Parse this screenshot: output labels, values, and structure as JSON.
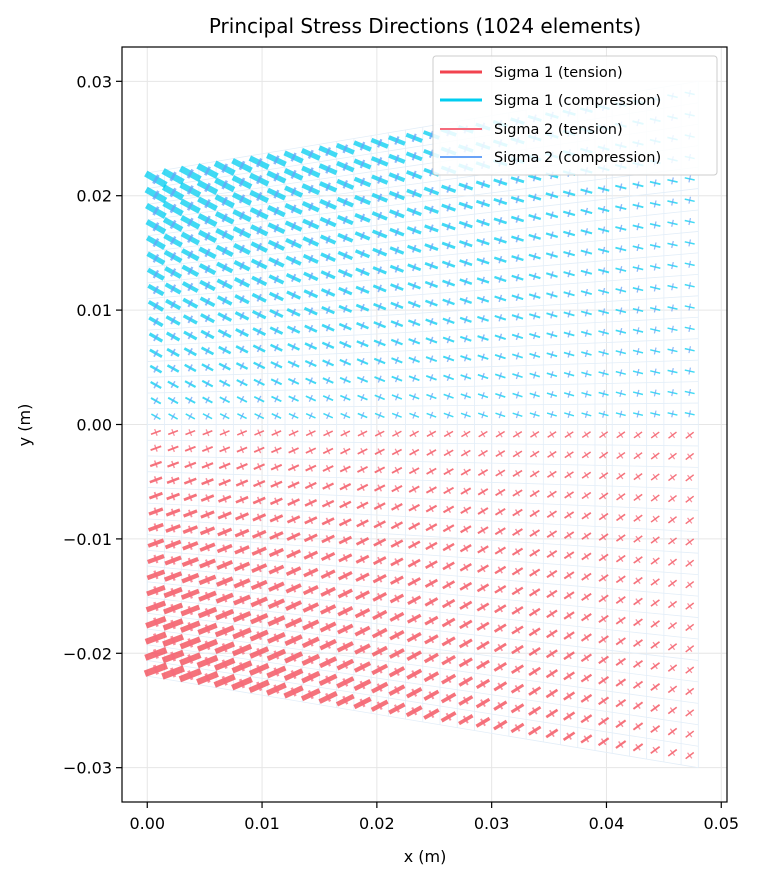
{
  "chart_data": {
    "type": "scatter",
    "title": "Principal Stress Directions (1024 elements)",
    "xlabel": "x (m)",
    "ylabel": "y (m)",
    "xlim": [
      -0.0022,
      0.0505
    ],
    "ylim": [
      -0.033,
      0.033
    ],
    "xticks": [
      0.0,
      0.01,
      0.02,
      0.03,
      0.04,
      0.05
    ],
    "xtick_labels": [
      "0.00",
      "0.01",
      "0.02",
      "0.03",
      "0.04",
      "0.05"
    ],
    "yticks": [
      -0.03,
      -0.02,
      -0.01,
      0.0,
      0.01,
      0.02,
      0.03
    ],
    "ytick_labels": [
      "−0.03",
      "−0.02",
      "−0.01",
      "0.00",
      "0.01",
      "0.02",
      "0.03"
    ],
    "grid": true,
    "legend_position": "top-right",
    "mesh": {
      "elements": 1024,
      "nx": 32,
      "ny": 32,
      "corners": {
        "bottom_left": [
          0.0,
          -0.022
        ],
        "top_left": [
          0.0,
          0.022
        ],
        "bottom_right": [
          0.048,
          -0.03
        ],
        "top_right": [
          0.048,
          0.03
        ]
      }
    },
    "series": [
      {
        "name": "Sigma 1 (tension)",
        "color": "#f2434f"
      },
      {
        "name": "Sigma 1 (compression)",
        "color": "#00cdf0"
      },
      {
        "name": "Sigma 2 (tension)",
        "color": "#f56b7c"
      },
      {
        "name": "Sigma 2 (compression)",
        "color": "#6aa3f7"
      }
    ]
  }
}
